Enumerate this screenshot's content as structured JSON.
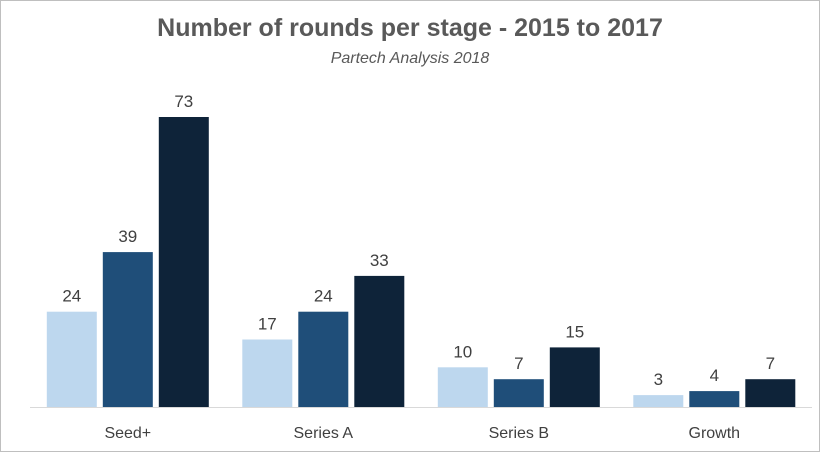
{
  "chart_data": {
    "type": "bar",
    "title": "Number of rounds per stage - 2015 to 2017",
    "subtitle": "Partech Analysis 2018",
    "categories": [
      "Seed+",
      "Series A",
      "Series B",
      "Growth"
    ],
    "series": [
      {
        "values": [
          24,
          17,
          10,
          3
        ],
        "color": "#bdd7ee"
      },
      {
        "values": [
          39,
          24,
          7,
          4
        ],
        "color": "#1f4e79"
      },
      {
        "values": [
          73,
          33,
          15,
          7
        ],
        "color": "#0e2339"
      }
    ],
    "ylim": [
      0,
      73
    ],
    "grid": false,
    "legend": "none",
    "data_labels": true,
    "axis_color": "#d9d9d9"
  }
}
